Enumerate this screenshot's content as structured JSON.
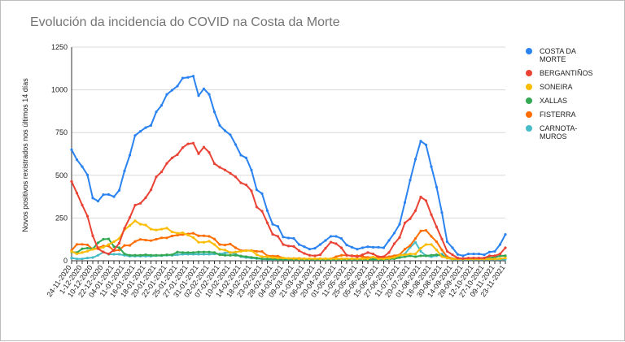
{
  "chart_data": {
    "type": "line",
    "title": "Evolución da incidencia do COVID na Costa da Morte",
    "xlabel": "",
    "ylabel": "Novos positivos rexistrados nos últimos 14 días",
    "ylim": [
      0,
      1250
    ],
    "yticks": [
      0,
      250,
      500,
      750,
      1000,
      1250
    ],
    "grid": true,
    "legend_position": "right",
    "x_tick_labels": [
      "24-11-2020",
      "1-12-2020",
      "10-12-2020",
      "22-12-2020",
      "04-01-2021",
      "11-01-2021",
      "16-01-2021",
      "18-01-2021",
      "20-01-2021",
      "22-01-2021",
      "25-01-2021",
      "27-01-2021",
      "31-01-2021",
      "02-02-2021",
      "07-02-2021",
      "10-02-2021",
      "14-02-2021",
      "18-02-2021",
      "23-02-2021",
      "28-02-2021",
      "04-03-2021",
      "09-03-2021",
      "21-03-2021",
      "06-04-2021",
      "20-04-2021",
      "01-05-2021",
      "11-05-2021",
      "25-05-2021",
      "05-06-2021",
      "15-06-2021",
      "27-06-2021",
      "11-07-2021",
      "20-07-2021",
      "01-08-2021",
      "16-08-2021",
      "30-08-2021",
      "14-09-2021",
      "28-09-2021",
      "12-10-2021",
      "27-10-2021",
      "09-11-2021",
      "23-11-2021"
    ],
    "series": [
      {
        "name": "COSTA DA MORTE",
        "color": "#2a83f0",
        "values": [
          650,
          591,
          551,
          502,
          367,
          349,
          387,
          388,
          375,
          412,
          526,
          618,
          733,
          757,
          779,
          792,
          871,
          909,
          973,
          998,
          1022,
          1069,
          1073,
          1080,
          966,
          1006,
          974,
          871,
          792,
          761,
          737,
          680,
          618,
          602,
          530,
          415,
          393,
          293,
          214,
          201,
          139,
          133,
          131,
          95,
          82,
          68,
          73,
          95,
          119,
          143,
          143,
          130,
          92,
          79,
          68,
          76,
          82,
          79,
          79,
          76,
          119,
          162,
          214,
          341,
          472,
          594,
          700,
          678,
          551,
          431,
          282,
          111,
          76,
          37,
          29,
          40,
          40,
          40,
          35,
          51,
          55,
          95,
          154
        ]
      },
      {
        "name": "BERGANTIÑOS",
        "color": "#ea4335",
        "values": [
          464,
          396,
          326,
          261,
          146,
          71,
          51,
          40,
          63,
          103,
          190,
          253,
          325,
          336,
          369,
          415,
          491,
          520,
          570,
          602,
          621,
          662,
          684,
          688,
          626,
          665,
          634,
          568,
          547,
          531,
          512,
          491,
          456,
          444,
          409,
          314,
          290,
          222,
          155,
          143,
          95,
          86,
          84,
          59,
          43,
          32,
          29,
          35,
          73,
          109,
          100,
          76,
          32,
          29,
          24,
          35,
          48,
          40,
          24,
          24,
          48,
          100,
          136,
          222,
          246,
          293,
          373,
          352,
          270,
          198,
          127,
          55,
          35,
          16,
          13,
          16,
          16,
          16,
          16,
          29,
          29,
          40,
          76
        ]
      },
      {
        "name": "SONEIRA",
        "color": "#fbbc04",
        "values": [
          54,
          41,
          48,
          56,
          67,
          71,
          79,
          95,
          111,
          130,
          182,
          206,
          234,
          214,
          209,
          185,
          180,
          185,
          191,
          169,
          161,
          164,
          150,
          136,
          108,
          108,
          114,
          95,
          67,
          63,
          48,
          51,
          55,
          59,
          59,
          36,
          24,
          24,
          19,
          16,
          16,
          14,
          13,
          12,
          12,
          12,
          12,
          12,
          12,
          12,
          12,
          12,
          12,
          12,
          12,
          12,
          12,
          22,
          12,
          12,
          14,
          20,
          32,
          35,
          40,
          40,
          73,
          95,
          95,
          63,
          24,
          16,
          10,
          10,
          10,
          10,
          10,
          10,
          10,
          10,
          10,
          12,
          16
        ]
      },
      {
        "name": "XALLAS",
        "color": "#34a853",
        "values": [
          51,
          48,
          70,
          74,
          70,
          105,
          126,
          128,
          83,
          77,
          40,
          32,
          32,
          32,
          35,
          32,
          32,
          32,
          35,
          35,
          51,
          48,
          48,
          48,
          51,
          51,
          51,
          48,
          35,
          32,
          32,
          32,
          28,
          24,
          20,
          16,
          12,
          10,
          10,
          8,
          8,
          8,
          8,
          8,
          8,
          8,
          8,
          8,
          8,
          8,
          8,
          8,
          8,
          8,
          8,
          8,
          8,
          8,
          8,
          8,
          10,
          12,
          19,
          24,
          29,
          24,
          29,
          29,
          32,
          35,
          29,
          16,
          10,
          10,
          10,
          10,
          10,
          10,
          10,
          16,
          20,
          29,
          29
        ]
      },
      {
        "name": "FISTERRA",
        "color": "#ff6d01",
        "values": [
          61,
          96,
          96,
          93,
          67,
          77,
          86,
          86,
          59,
          63,
          90,
          90,
          113,
          125,
          121,
          118,
          126,
          134,
          134,
          145,
          150,
          153,
          157,
          161,
          146,
          146,
          143,
          127,
          95,
          92,
          98,
          76,
          60,
          60,
          60,
          55,
          54,
          29,
          27,
          27,
          16,
          14,
          14,
          14,
          12,
          12,
          12,
          12,
          12,
          12,
          24,
          32,
          32,
          29,
          29,
          24,
          20,
          20,
          20,
          19,
          24,
          29,
          35,
          68,
          89,
          130,
          174,
          178,
          143,
          111,
          63,
          24,
          13,
          12,
          12,
          12,
          12,
          12,
          12,
          16,
          20,
          29,
          29
        ]
      },
      {
        "name": "CARNOTA-MUROS",
        "color": "#46bdc6",
        "values": [
          16,
          11,
          11,
          16,
          19,
          32,
          51,
          38,
          38,
          38,
          32,
          27,
          27,
          27,
          27,
          27,
          30,
          30,
          32,
          32,
          35,
          38,
          38,
          38,
          38,
          38,
          38,
          40,
          40,
          45,
          48,
          40,
          24,
          19,
          16,
          13,
          10,
          8,
          8,
          8,
          8,
          8,
          8,
          8,
          8,
          8,
          8,
          8,
          8,
          8,
          8,
          8,
          8,
          8,
          8,
          8,
          8,
          8,
          8,
          8,
          12,
          24,
          29,
          40,
          79,
          108,
          55,
          29,
          24,
          29,
          40,
          16,
          8,
          8,
          8,
          8,
          8,
          8,
          8,
          8,
          8,
          8,
          8
        ]
      }
    ]
  },
  "legend": [
    {
      "line1": "COSTA DA",
      "line2": "MORTE"
    },
    {
      "line1": "BERGANTIÑOS",
      "line2": ""
    },
    {
      "line1": "SONEIRA",
      "line2": ""
    },
    {
      "line1": "XALLAS",
      "line2": ""
    },
    {
      "line1": "FISTERRA",
      "line2": ""
    },
    {
      "line1": "CARNOTA-",
      "line2": "MUROS"
    }
  ]
}
